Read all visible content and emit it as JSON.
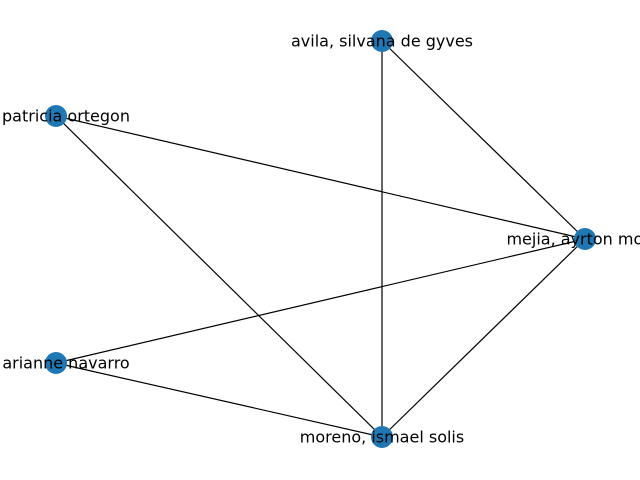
{
  "graph": {
    "node_color": "#1f77b4",
    "edge_color": "#000000",
    "nodes": [
      {
        "id": "avila",
        "label": "avila, silvana de gyves"
      },
      {
        "id": "patricia",
        "label": "o, patricia ortegon"
      },
      {
        "id": "mejia",
        "label": "mejia, ayrton mond"
      },
      {
        "id": "arianne",
        "label": "e, arianne navarro"
      },
      {
        "id": "moreno",
        "label": "moreno, ismael solis"
      }
    ],
    "edges": [
      {
        "source": "avila",
        "target": "mejia"
      },
      {
        "source": "avila",
        "target": "moreno"
      },
      {
        "source": "patricia",
        "target": "mejia"
      },
      {
        "source": "patricia",
        "target": "moreno"
      },
      {
        "source": "arianne",
        "target": "mejia"
      },
      {
        "source": "arianne",
        "target": "moreno"
      },
      {
        "source": "mejia",
        "target": "moreno"
      }
    ]
  }
}
